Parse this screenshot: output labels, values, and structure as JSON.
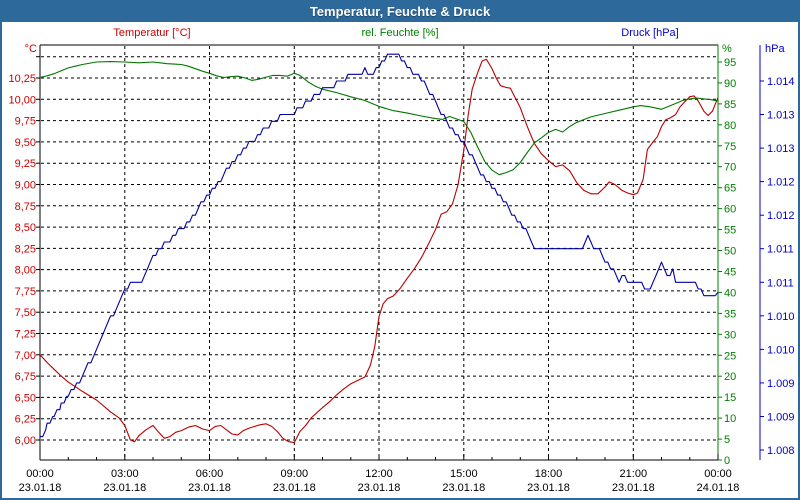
{
  "window": {
    "title": "Temperatur, Feuchte & Druck"
  },
  "chart_data": {
    "type": "line",
    "title": "Temperatur, Feuchte & Druck",
    "grid": {
      "style": "dashed",
      "h_lines_temp_step": 0.25,
      "v_lines_hour_step": 3
    },
    "x_axis": {
      "range_hours": [
        0,
        24
      ],
      "hours": [
        0,
        3,
        6,
        9,
        12,
        15,
        18,
        21,
        24
      ],
      "time_labels": [
        "00:00",
        "03:00",
        "06:00",
        "09:00",
        "12:00",
        "15:00",
        "18:00",
        "21:00",
        "00:00"
      ],
      "date_labels": [
        "23.01.18",
        "23.01.18",
        "23.01.18",
        "23.01.18",
        "23.01.18",
        "23.01.18",
        "23.01.18",
        "23.01.18",
        "24.01.18"
      ],
      "text_color": "#000000"
    },
    "y_axes": {
      "temp": {
        "unit": "°C",
        "text_color": "#cc0000",
        "side": "left",
        "tick_labels": [
          "10,25",
          "10,00",
          "9,75",
          "9,50",
          "9,25",
          "9,00",
          "8,75",
          "8,50",
          "8,25",
          "8,00",
          "7,75",
          "7,50",
          "7,25",
          "7,00",
          "6,75",
          "6,50",
          "6,25",
          "6,00"
        ],
        "tick_values": [
          10.25,
          10.0,
          9.75,
          9.5,
          9.25,
          9.0,
          8.75,
          8.5,
          8.25,
          8.0,
          7.75,
          7.5,
          7.25,
          7.0,
          6.75,
          6.5,
          6.25,
          6.0
        ],
        "min": 6.0,
        "max": 10.5
      },
      "hum": {
        "unit": "%",
        "text_color": "#008000",
        "side": "right",
        "tick_labels": [
          "95",
          "90",
          "85",
          "80",
          "75",
          "70",
          "65",
          "60",
          "55",
          "50",
          "45",
          "40",
          "35",
          "30",
          "25",
          "20",
          "15",
          "10",
          "5",
          "0"
        ],
        "tick_values": [
          95,
          90,
          85,
          80,
          75,
          70,
          65,
          60,
          55,
          50,
          45,
          40,
          35,
          30,
          25,
          20,
          15,
          10,
          5,
          0
        ],
        "min": 0,
        "max": 95
      },
      "pres": {
        "unit": "hPa",
        "text_color": "#0000cc",
        "side": "far-right",
        "tick_labels": [
          "1.014",
          "1.013",
          "1.013",
          "1.012",
          "1.012",
          "1.011",
          "1.011",
          "1.010",
          "1.010",
          "1.009",
          "1.009",
          "1.008"
        ],
        "tick_values": [
          1014.0,
          1013.5,
          1013.0,
          1012.5,
          1012.0,
          1011.5,
          1011.0,
          1010.5,
          1010.0,
          1009.5,
          1009.0,
          1008.5
        ],
        "min": 1008.5,
        "max": 1014.0
      }
    },
    "series": [
      {
        "name": "Temperatur [°C]",
        "axis": "temp",
        "color": "#bb0000",
        "legend_color": "#cc0000",
        "points": [
          [
            0,
            7.0
          ],
          [
            0.25,
            6.91
          ],
          [
            0.5,
            6.83
          ],
          [
            0.75,
            6.75
          ],
          [
            1,
            6.68
          ],
          [
            1.5,
            6.57
          ],
          [
            2,
            6.47
          ],
          [
            2.5,
            6.33
          ],
          [
            2.8,
            6.26
          ],
          [
            3,
            6.17
          ],
          [
            3.2,
            6.0
          ],
          [
            3.35,
            5.98
          ],
          [
            3.5,
            6.05
          ],
          [
            3.75,
            6.12
          ],
          [
            4,
            6.17
          ],
          [
            4.2,
            6.09
          ],
          [
            4.4,
            6.02
          ],
          [
            4.6,
            6.04
          ],
          [
            4.8,
            6.09
          ],
          [
            5,
            6.11
          ],
          [
            5.25,
            6.15
          ],
          [
            5.5,
            6.17
          ],
          [
            5.75,
            6.13
          ],
          [
            6,
            6.11
          ],
          [
            6.2,
            6.16
          ],
          [
            6.4,
            6.17
          ],
          [
            6.6,
            6.12
          ],
          [
            6.8,
            6.07
          ],
          [
            7,
            6.06
          ],
          [
            7.2,
            6.11
          ],
          [
            7.4,
            6.14
          ],
          [
            7.6,
            6.16
          ],
          [
            7.8,
            6.18
          ],
          [
            8,
            6.19
          ],
          [
            8.2,
            6.16
          ],
          [
            8.4,
            6.1
          ],
          [
            8.6,
            6.02
          ],
          [
            8.8,
            5.98
          ],
          [
            9,
            5.97
          ],
          [
            9.2,
            6.1
          ],
          [
            9.4,
            6.17
          ],
          [
            9.6,
            6.26
          ],
          [
            9.8,
            6.32
          ],
          [
            10,
            6.38
          ],
          [
            10.25,
            6.45
          ],
          [
            10.5,
            6.53
          ],
          [
            10.75,
            6.6
          ],
          [
            11,
            6.66
          ],
          [
            11.25,
            6.7
          ],
          [
            11.5,
            6.74
          ],
          [
            11.7,
            6.88
          ],
          [
            11.85,
            7.1
          ],
          [
            12,
            7.45
          ],
          [
            12.15,
            7.6
          ],
          [
            12.3,
            7.66
          ],
          [
            12.5,
            7.69
          ],
          [
            12.75,
            7.78
          ],
          [
            13,
            7.9
          ],
          [
            13.25,
            8.01
          ],
          [
            13.5,
            8.14
          ],
          [
            13.75,
            8.3
          ],
          [
            14,
            8.47
          ],
          [
            14.2,
            8.65
          ],
          [
            14.4,
            8.68
          ],
          [
            14.6,
            8.77
          ],
          [
            14.8,
            9.0
          ],
          [
            15,
            9.4
          ],
          [
            15.15,
            9.8
          ],
          [
            15.3,
            10.12
          ],
          [
            15.5,
            10.32
          ],
          [
            15.65,
            10.45
          ],
          [
            15.8,
            10.47
          ],
          [
            16,
            10.36
          ],
          [
            16.15,
            10.25
          ],
          [
            16.3,
            10.16
          ],
          [
            16.5,
            10.14
          ],
          [
            16.65,
            10.13
          ],
          [
            16.85,
            10.0
          ],
          [
            17,
            9.9
          ],
          [
            17.25,
            9.68
          ],
          [
            17.5,
            9.48
          ],
          [
            17.75,
            9.36
          ],
          [
            18,
            9.28
          ],
          [
            18.25,
            9.21
          ],
          [
            18.5,
            9.23
          ],
          [
            18.75,
            9.16
          ],
          [
            19,
            9.02
          ],
          [
            19.25,
            8.93
          ],
          [
            19.5,
            8.89
          ],
          [
            19.75,
            8.89
          ],
          [
            20,
            8.97
          ],
          [
            20.15,
            9.03
          ],
          [
            20.35,
            9.0
          ],
          [
            20.6,
            8.93
          ],
          [
            20.8,
            8.9
          ],
          [
            21,
            8.88
          ],
          [
            21.15,
            8.9
          ],
          [
            21.35,
            9.06
          ],
          [
            21.5,
            9.41
          ],
          [
            21.7,
            9.5
          ],
          [
            21.85,
            9.56
          ],
          [
            22,
            9.68
          ],
          [
            22.15,
            9.76
          ],
          [
            22.3,
            9.78
          ],
          [
            22.5,
            9.82
          ],
          [
            22.65,
            9.91
          ],
          [
            22.85,
            9.98
          ],
          [
            23,
            10.03
          ],
          [
            23.15,
            10.04
          ],
          [
            23.3,
            9.98
          ],
          [
            23.5,
            9.86
          ],
          [
            23.65,
            9.81
          ],
          [
            23.8,
            9.86
          ],
          [
            24,
            10.02
          ]
        ]
      },
      {
        "name": "rel. Feuchte [%]",
        "axis": "hum",
        "color": "#007700",
        "legend_color": "#008000",
        "points": [
          [
            0,
            91.3
          ],
          [
            0.25,
            91.7
          ],
          [
            0.5,
            92.2
          ],
          [
            0.75,
            92.9
          ],
          [
            1,
            93.6
          ],
          [
            1.25,
            94.0
          ],
          [
            1.5,
            94.4
          ],
          [
            2,
            95.0
          ],
          [
            2.5,
            95.1
          ],
          [
            3,
            95.0
          ],
          [
            3.5,
            94.8
          ],
          [
            4,
            95.0
          ],
          [
            4.25,
            94.8
          ],
          [
            4.5,
            94.6
          ],
          [
            4.75,
            94.5
          ],
          [
            5,
            94.4
          ],
          [
            5.25,
            94.0
          ],
          [
            5.5,
            93.4
          ],
          [
            5.75,
            92.8
          ],
          [
            6,
            92.3
          ],
          [
            6.25,
            91.7
          ],
          [
            6.5,
            91.3
          ],
          [
            6.75,
            91.5
          ],
          [
            7,
            91.6
          ],
          [
            7.25,
            91.2
          ],
          [
            7.5,
            90.6
          ],
          [
            7.75,
            90.9
          ],
          [
            8,
            91.4
          ],
          [
            8.25,
            91.8
          ],
          [
            8.5,
            91.8
          ],
          [
            8.75,
            91.6
          ],
          [
            9,
            92.3
          ],
          [
            9.2,
            91.8
          ],
          [
            9.5,
            90.2
          ],
          [
            9.75,
            89.2
          ],
          [
            10,
            88.5
          ],
          [
            10.5,
            87.7
          ],
          [
            11,
            86.7
          ],
          [
            11.5,
            85.8
          ],
          [
            12,
            84.4
          ],
          [
            12.5,
            83.4
          ],
          [
            13,
            82.8
          ],
          [
            13.5,
            82.1
          ],
          [
            14,
            81.5
          ],
          [
            14.25,
            81.3
          ],
          [
            14.5,
            82.0
          ],
          [
            14.75,
            81.4
          ],
          [
            15,
            80.8
          ],
          [
            15.25,
            78.2
          ],
          [
            15.5,
            74.6
          ],
          [
            15.75,
            71.2
          ],
          [
            16,
            69.2
          ],
          [
            16.25,
            68.1
          ],
          [
            16.5,
            68.6
          ],
          [
            16.75,
            69.3
          ],
          [
            17,
            71.0
          ],
          [
            17.25,
            73.4
          ],
          [
            17.5,
            75.7
          ],
          [
            17.75,
            76.9
          ],
          [
            18,
            78.2
          ],
          [
            18.25,
            78.9
          ],
          [
            18.5,
            78.3
          ],
          [
            18.75,
            79.6
          ],
          [
            19,
            80.6
          ],
          [
            19.5,
            81.9
          ],
          [
            20,
            82.7
          ],
          [
            20.5,
            83.5
          ],
          [
            21,
            84.3
          ],
          [
            21.25,
            84.6
          ],
          [
            21.5,
            84.4
          ],
          [
            21.75,
            84.1
          ],
          [
            22,
            83.7
          ],
          [
            22.25,
            84.4
          ],
          [
            22.5,
            85.1
          ],
          [
            22.75,
            85.8
          ],
          [
            23,
            86.2
          ],
          [
            23.25,
            86.4
          ],
          [
            23.5,
            86.2
          ],
          [
            23.75,
            86.0
          ],
          [
            24,
            85.7
          ]
        ]
      },
      {
        "name": "Druck [hPa]",
        "axis": "pres",
        "color": "#0000a0",
        "legend_color": "#0000cc",
        "quantize": 0.1,
        "points": [
          [
            0,
            1008.65
          ],
          [
            0.25,
            1008.85
          ],
          [
            0.5,
            1009.0
          ],
          [
            0.75,
            1009.15
          ],
          [
            1,
            1009.3
          ],
          [
            1.5,
            1009.6
          ],
          [
            2,
            1010.0
          ],
          [
            2.5,
            1010.45
          ],
          [
            3,
            1010.9
          ],
          [
            3.2,
            1010.95
          ],
          [
            3.6,
            1011.0
          ],
          [
            4,
            1011.4
          ],
          [
            4.5,
            1011.6
          ],
          [
            5,
            1011.8
          ],
          [
            5.5,
            1012.05
          ],
          [
            6,
            1012.3
          ],
          [
            6.5,
            1012.6
          ],
          [
            7,
            1012.9
          ],
          [
            7.5,
            1013.1
          ],
          [
            8,
            1013.3
          ],
          [
            8.5,
            1013.45
          ],
          [
            9,
            1013.55
          ],
          [
            9.5,
            1013.7
          ],
          [
            10,
            1013.85
          ],
          [
            10.5,
            1013.95
          ],
          [
            11,
            1014.1
          ],
          [
            11.5,
            1014.15
          ],
          [
            11.7,
            1014.1
          ],
          [
            12,
            1014.2
          ],
          [
            12.3,
            1014.35
          ],
          [
            12.7,
            1014.35
          ],
          [
            13,
            1014.2
          ],
          [
            13.5,
            1014.05
          ],
          [
            14,
            1013.7
          ],
          [
            14.5,
            1013.3
          ],
          [
            15,
            1013.1
          ],
          [
            15.5,
            1012.7
          ],
          [
            16,
            1012.4
          ],
          [
            16.5,
            1012.15
          ],
          [
            17,
            1011.9
          ],
          [
            17.2,
            1011.75
          ],
          [
            17.4,
            1011.6
          ],
          [
            17.6,
            1011.5
          ],
          [
            17.8,
            1011.45
          ],
          [
            18,
            1011.55
          ],
          [
            18.2,
            1011.45
          ],
          [
            18.5,
            1011.5
          ],
          [
            18.7,
            1011.45
          ],
          [
            19,
            1011.5
          ],
          [
            19.2,
            1011.55
          ],
          [
            19.4,
            1011.65
          ],
          [
            19.6,
            1011.5
          ],
          [
            19.8,
            1011.45
          ],
          [
            20,
            1011.3
          ],
          [
            20.2,
            1011.2
          ],
          [
            20.5,
            1011.05
          ],
          [
            20.7,
            1011.1
          ],
          [
            20.9,
            1011.0
          ],
          [
            21.1,
            1010.95
          ],
          [
            21.3,
            1011.0
          ],
          [
            21.5,
            1010.9
          ],
          [
            21.7,
            1010.95
          ],
          [
            22,
            1011.3
          ],
          [
            22.1,
            1011.15
          ],
          [
            22.3,
            1011.1
          ],
          [
            22.4,
            1011.2
          ],
          [
            22.5,
            1011.05
          ],
          [
            22.7,
            1011.0
          ],
          [
            23,
            1011.0
          ],
          [
            23.2,
            1011.0
          ],
          [
            23.4,
            1010.85
          ],
          [
            23.6,
            1010.8
          ],
          [
            23.8,
            1010.75
          ],
          [
            23.9,
            1010.8
          ],
          [
            24,
            1010.85
          ]
        ]
      }
    ],
    "legend_position": "top"
  }
}
